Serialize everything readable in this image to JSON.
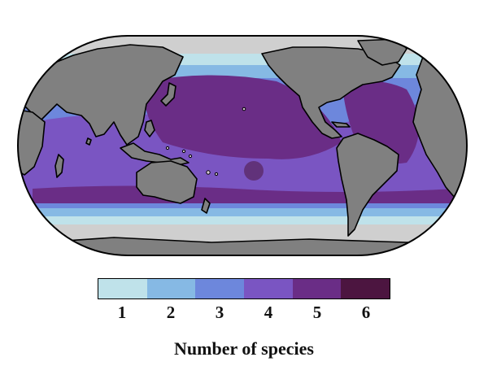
{
  "map": {
    "projection": "robinson-like world map, Pacific-centred",
    "colors": {
      "land": "#808080",
      "ice_no_data": "#cfcfcf",
      "coastline": "#000000",
      "ocean_edge": "#000000"
    }
  },
  "legend": {
    "title": "Number of species",
    "classes": [
      {
        "label": "1",
        "color": "#bfe2ea"
      },
      {
        "label": "2",
        "color": "#86b9e4"
      },
      {
        "label": "3",
        "color": "#6d87dc"
      },
      {
        "label": "4",
        "color": "#7a55c2"
      },
      {
        "label": "5",
        "color": "#6a2d86"
      },
      {
        "label": "6",
        "color": "#4c1540"
      }
    ]
  }
}
